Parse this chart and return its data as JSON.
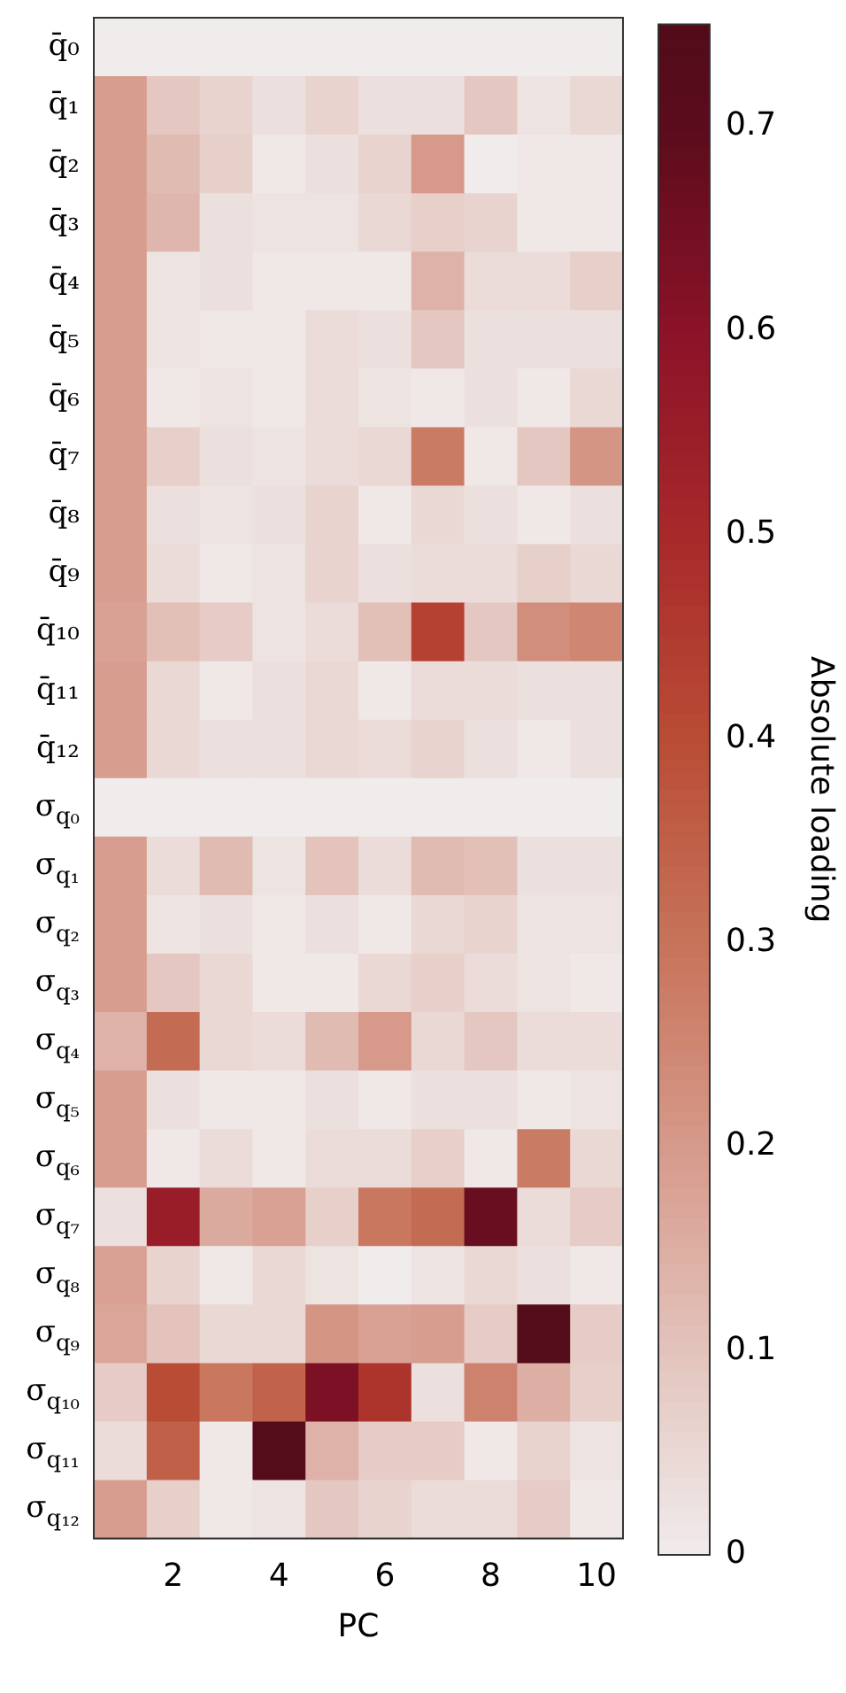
{
  "chart_data": {
    "type": "heatmap",
    "xlabel": "PC",
    "clabel": "Absolute loading",
    "categories": [
      null,
      "2",
      null,
      "4",
      null,
      "6",
      null,
      "8",
      null,
      "10"
    ],
    "y_categories": [
      "q̄₀",
      "q̄₁",
      "q̄₂",
      "q̄₃",
      "q̄₄",
      "q̄₅",
      "q̄₆",
      "q̄₇",
      "q̄₈",
      "q̄₉",
      "q̄₁₀",
      "q̄₁₁",
      "q̄₁₂",
      "σ$_{q₀}$",
      "σ$_{q₁}$",
      "σ$_{q₂}$",
      "σ$_{q₃}$",
      "σ$_{q₄}$",
      "σ$_{q₅}$",
      "σ$_{q₆}$",
      "σ$_{q₇}$",
      "σ$_{q₈}$",
      "σ$_{q₉}$",
      "σ$_{q₁₀}$",
      "σ$_{q₁₁}$",
      "σ$_{q₁₂}$"
    ],
    "cells": [
      [
        0,
        0,
        0,
        0,
        0,
        0,
        0,
        0,
        0,
        0
      ],
      [
        0.19,
        0.09,
        0.06,
        0.03,
        0.06,
        0.03,
        0.03,
        0.09,
        0.02,
        0.05
      ],
      [
        0.19,
        0.12,
        0.07,
        0.01,
        0.03,
        0.06,
        0.2,
        0,
        0.01,
        0.01
      ],
      [
        0.19,
        0.13,
        0.03,
        0.02,
        0.02,
        0.05,
        0.07,
        0.06,
        0.01,
        0.01
      ],
      [
        0.19,
        0.02,
        0.03,
        0.01,
        0.01,
        0.01,
        0.14,
        0.04,
        0.04,
        0.07
      ],
      [
        0.19,
        0.02,
        0.01,
        0.01,
        0.04,
        0.03,
        0.09,
        0.03,
        0.03,
        0.03
      ],
      [
        0.19,
        0.01,
        0.02,
        0.01,
        0.04,
        0.02,
        0.01,
        0.03,
        0.01,
        0.05
      ],
      [
        0.19,
        0.07,
        0.03,
        0.02,
        0.04,
        0.05,
        0.28,
        0.01,
        0.09,
        0.21
      ],
      [
        0.19,
        0.03,
        0.02,
        0.03,
        0.06,
        0.01,
        0.05,
        0.03,
        0.01,
        0.03
      ],
      [
        0.19,
        0.04,
        0.01,
        0.02,
        0.06,
        0.03,
        0.04,
        0.04,
        0.07,
        0.05
      ],
      [
        0.18,
        0.11,
        0.08,
        0.02,
        0.04,
        0.11,
        0.43,
        0.09,
        0.23,
        0.25
      ],
      [
        0.19,
        0.05,
        0.01,
        0.03,
        0.05,
        0.01,
        0.04,
        0.04,
        0.03,
        0.03
      ],
      [
        0.19,
        0.05,
        0.03,
        0.03,
        0.05,
        0.04,
        0.06,
        0.03,
        0.01,
        0.03
      ],
      [
        0,
        0,
        0,
        0,
        0,
        0,
        0,
        0,
        0,
        0
      ],
      [
        0.19,
        0.04,
        0.12,
        0.02,
        0.1,
        0.04,
        0.12,
        0.11,
        0.03,
        0.03
      ],
      [
        0.19,
        0.02,
        0.03,
        0.01,
        0.03,
        0.01,
        0.05,
        0.06,
        0.02,
        0.02
      ],
      [
        0.19,
        0.09,
        0.05,
        0.01,
        0.01,
        0.05,
        0.07,
        0.04,
        0.02,
        0.01
      ],
      [
        0.14,
        0.32,
        0.05,
        0.04,
        0.12,
        0.2,
        0.05,
        0.09,
        0.04,
        0.04
      ],
      [
        0.19,
        0.03,
        0.01,
        0.01,
        0.03,
        0.01,
        0.03,
        0.03,
        0.01,
        0.02
      ],
      [
        0.19,
        0.01,
        0.04,
        0.01,
        0.04,
        0.04,
        0.07,
        0.01,
        0.28,
        0.05
      ],
      [
        0.03,
        0.55,
        0.16,
        0.18,
        0.07,
        0.29,
        0.32,
        0.67,
        0.04,
        0.08
      ],
      [
        0.18,
        0.06,
        0.01,
        0.05,
        0.02,
        0,
        0.02,
        0.05,
        0.03,
        0.01
      ],
      [
        0.17,
        0.1,
        0.05,
        0.05,
        0.21,
        0.18,
        0.19,
        0.08,
        0.74,
        0.08
      ],
      [
        0.08,
        0.4,
        0.29,
        0.34,
        0.63,
        0.47,
        0.03,
        0.26,
        0.15,
        0.07
      ],
      [
        0.04,
        0.35,
        0.01,
        0.74,
        0.14,
        0.08,
        0.08,
        0.01,
        0.06,
        0.02
      ],
      [
        0.19,
        0.07,
        0.01,
        0.02,
        0.09,
        0.06,
        0.04,
        0.04,
        0.08,
        0.01
      ]
    ],
    "clim": [
      0,
      0.75
    ],
    "cticks": [
      0,
      0.1,
      0.2,
      0.3,
      0.4,
      0.5,
      0.6,
      0.7
    ]
  }
}
